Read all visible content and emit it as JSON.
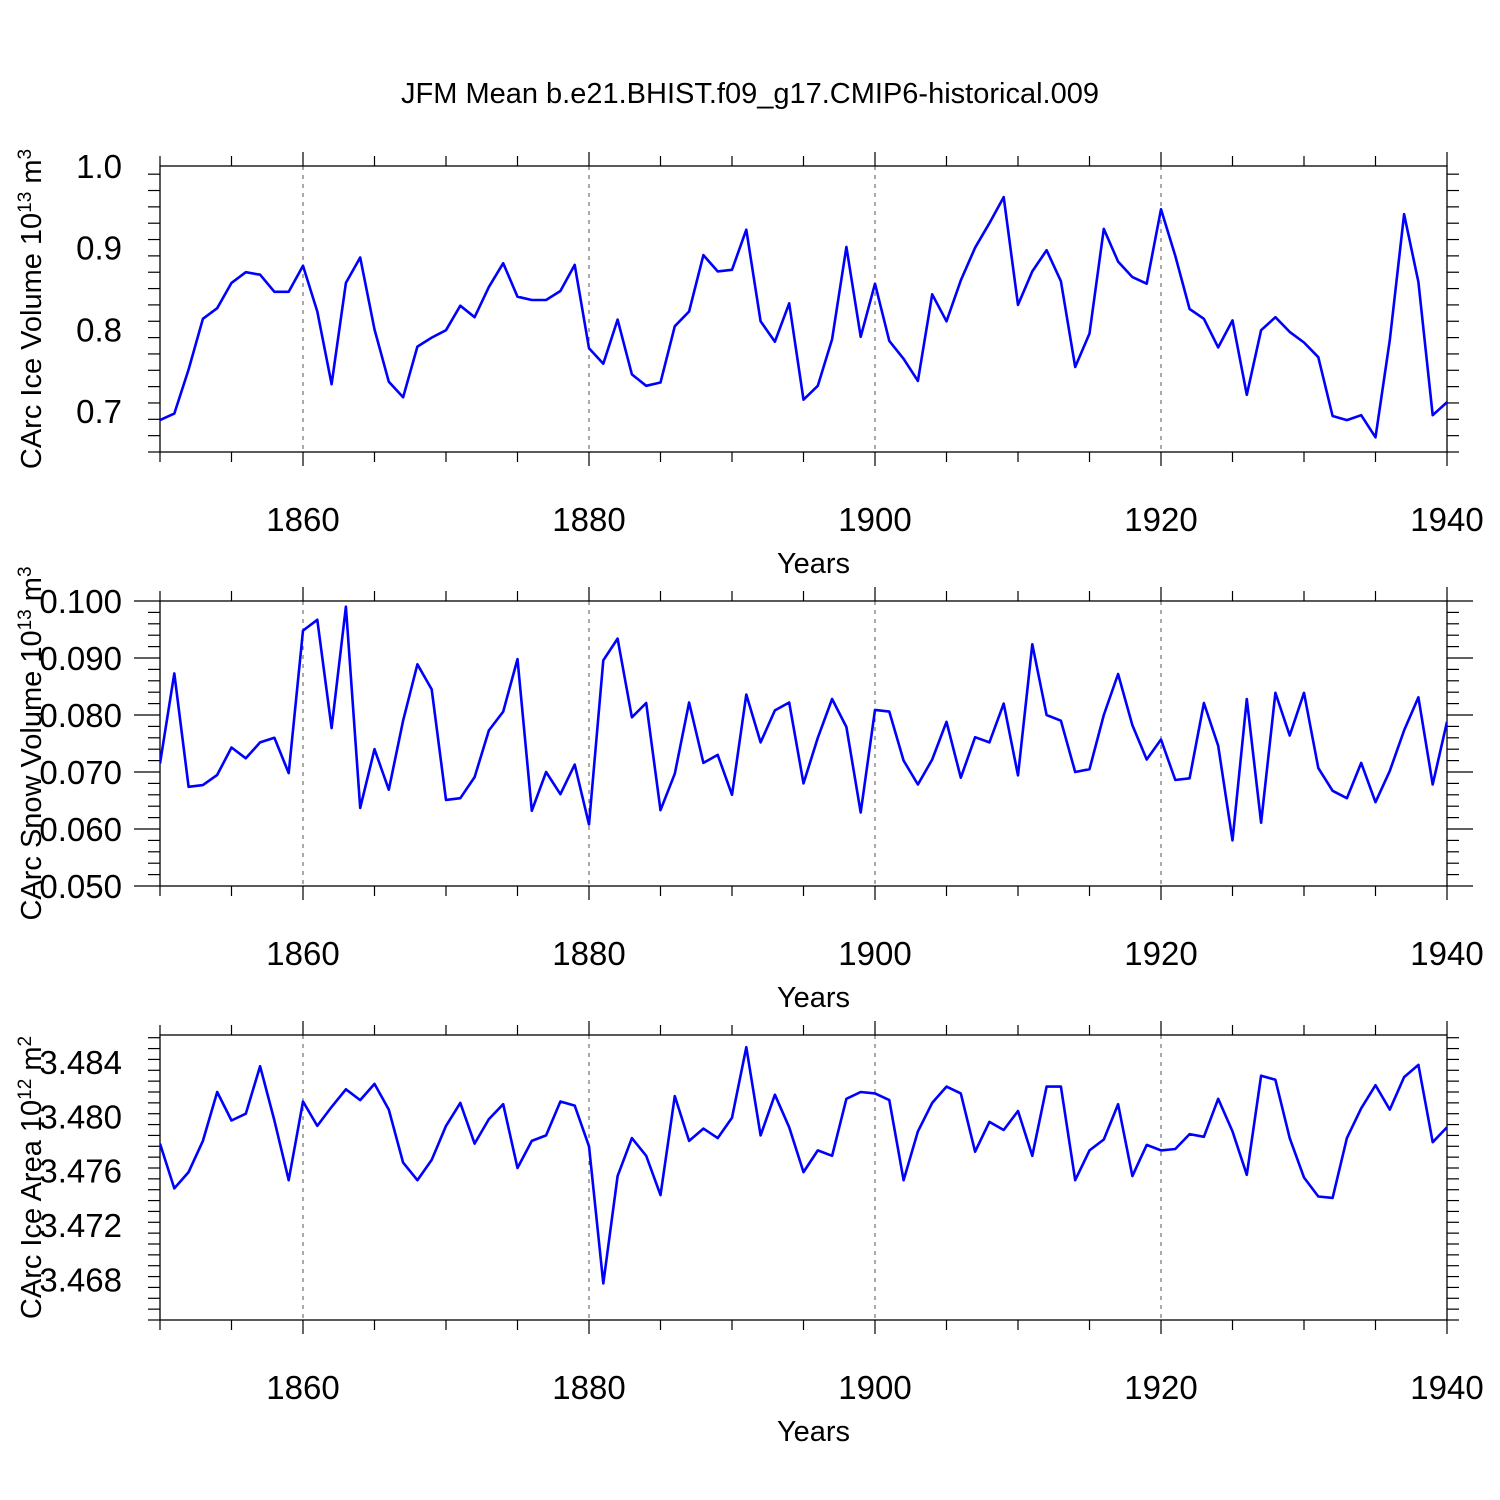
{
  "title": "JFM Mean b.e21.BHIST.f09_g17.CMIP6-historical.009",
  "colors": {
    "line": "#0000ff",
    "grid": "#555555",
    "axes": "#000000"
  },
  "chart_data": [
    {
      "type": "line",
      "ylabel": "CArc Ice Volume 10",
      "ylabel_exp": "13",
      "ylabel_unit": "m",
      "ylabel_unit_exp": "3",
      "xlabel": "Years",
      "xlim": [
        1850,
        1940
      ],
      "ylim": [
        0.65,
        1.0
      ],
      "xticks": [
        1860,
        1880,
        1900,
        1920,
        1940
      ],
      "xtick_labels": [
        "1860",
        "1880",
        "1900",
        "1920",
        "1940"
      ],
      "yticks": [
        0.7,
        0.8,
        0.9,
        1.0
      ],
      "ytick_labels": [
        "0.7",
        "0.8",
        "0.9",
        "1.0"
      ],
      "x_start": 1850,
      "values": [
        0.689,
        0.697,
        0.751,
        0.813,
        0.826,
        0.857,
        0.87,
        0.867,
        0.846,
        0.846,
        0.878,
        0.822,
        0.733,
        0.857,
        0.888,
        0.8,
        0.736,
        0.717,
        0.779,
        0.79,
        0.799,
        0.829,
        0.815,
        0.852,
        0.881,
        0.84,
        0.836,
        0.836,
        0.847,
        0.879,
        0.777,
        0.758,
        0.812,
        0.745,
        0.731,
        0.735,
        0.804,
        0.822,
        0.891,
        0.871,
        0.873,
        0.922,
        0.81,
        0.785,
        0.832,
        0.714,
        0.731,
        0.788,
        0.901,
        0.791,
        0.856,
        0.786,
        0.764,
        0.737,
        0.843,
        0.81,
        0.86,
        0.9,
        0.93,
        0.962,
        0.83,
        0.871,
        0.897,
        0.859,
        0.754,
        0.795,
        0.923,
        0.883,
        0.864,
        0.856,
        0.947,
        0.89,
        0.825,
        0.813,
        0.778,
        0.811,
        0.72,
        0.799,
        0.815,
        0.797,
        0.784,
        0.766,
        0.694,
        0.689,
        0.695,
        0.668,
        0.787,
        0.941,
        0.858,
        0.695,
        0.711
      ]
    },
    {
      "type": "line",
      "ylabel": "CArc Snow Volume 10",
      "ylabel_exp": "13",
      "ylabel_unit": "m",
      "ylabel_unit_exp": "3",
      "xlabel": "Years",
      "xlim": [
        1850,
        1940
      ],
      "ylim": [
        0.05,
        0.1
      ],
      "xticks": [
        1860,
        1880,
        1900,
        1920,
        1940
      ],
      "xtick_labels": [
        "1860",
        "1880",
        "1900",
        "1920",
        "1940"
      ],
      "yticks": [
        0.05,
        0.06,
        0.07,
        0.08,
        0.09,
        0.1
      ],
      "ytick_labels": [
        "0.050",
        "0.060",
        "0.070",
        "0.080",
        "0.090",
        "0.100"
      ],
      "x_start": 1850,
      "values": [
        0.0715,
        0.0873,
        0.0674,
        0.0677,
        0.0695,
        0.0743,
        0.0724,
        0.0752,
        0.076,
        0.0698,
        0.0948,
        0.0967,
        0.0777,
        0.099,
        0.0637,
        0.074,
        0.0669,
        0.079,
        0.0889,
        0.0845,
        0.0651,
        0.0654,
        0.0691,
        0.0773,
        0.0806,
        0.0898,
        0.0632,
        0.07,
        0.0661,
        0.0713,
        0.0608,
        0.0896,
        0.0934,
        0.0796,
        0.0821,
        0.0633,
        0.0697,
        0.0822,
        0.0716,
        0.073,
        0.066,
        0.0836,
        0.0752,
        0.0808,
        0.0822,
        0.068,
        0.076,
        0.0828,
        0.0779,
        0.0629,
        0.0809,
        0.0806,
        0.072,
        0.0678,
        0.0722,
        0.0788,
        0.069,
        0.0761,
        0.0752,
        0.082,
        0.0694,
        0.0924,
        0.08,
        0.079,
        0.07,
        0.0705,
        0.08,
        0.0872,
        0.0782,
        0.0722,
        0.0757,
        0.0686,
        0.0689,
        0.0821,
        0.0746,
        0.058,
        0.0828,
        0.0611,
        0.0839,
        0.0764,
        0.0839,
        0.0707,
        0.0667,
        0.0654,
        0.0716,
        0.0647,
        0.0702,
        0.0773,
        0.0831,
        0.0678,
        0.0788
      ]
    },
    {
      "type": "line",
      "ylabel": "CArc Ice Area 10",
      "ylabel_exp": "12",
      "ylabel_unit": "m",
      "ylabel_unit_exp": "2",
      "xlabel": "Years",
      "xlim": [
        1850,
        1940
      ],
      "ylim": [
        3.465,
        3.486
      ],
      "xticks": [
        1860,
        1880,
        1900,
        1920,
        1940
      ],
      "xtick_labels": [
        "1860",
        "1880",
        "1900",
        "1920",
        "1940"
      ],
      "yticks": [
        3.468,
        3.472,
        3.476,
        3.48,
        3.484
      ],
      "ytick_labels": [
        "3.468",
        "3.472",
        "3.476",
        "3.480",
        "3.484"
      ],
      "x_start": 1850,
      "values": [
        3.478,
        3.4747,
        3.4759,
        3.4782,
        3.4818,
        3.4797,
        3.4802,
        3.4837,
        3.4797,
        3.4753,
        3.4811,
        3.4793,
        3.4807,
        3.482,
        3.4812,
        3.4824,
        3.4805,
        3.4766,
        3.4753,
        3.4768,
        3.4793,
        3.481,
        3.478,
        3.4798,
        3.4809,
        3.4762,
        3.4782,
        3.4786,
        3.4811,
        3.4808,
        3.4778,
        3.4677,
        3.4756,
        3.4784,
        3.4771,
        3.4742,
        3.4815,
        3.4782,
        3.4791,
        3.4784,
        3.4799,
        3.4851,
        3.4786,
        3.4816,
        3.4792,
        3.4759,
        3.4775,
        3.4771,
        3.4813,
        3.4818,
        3.4817,
        3.4812,
        3.4753,
        3.4789,
        3.481,
        3.4822,
        3.4817,
        3.4774,
        3.4796,
        3.479,
        3.4804,
        3.4771,
        3.4822,
        3.4822,
        3.4753,
        3.4775,
        3.4783,
        3.4809,
        3.4756,
        3.4779,
        3.4775,
        3.4776,
        3.4787,
        3.4785,
        3.4813,
        3.4789,
        3.4757,
        3.483,
        3.4827,
        3.4784,
        3.4755,
        3.4741,
        3.474,
        3.4784,
        3.4806,
        3.4823,
        3.4805,
        3.4829,
        3.4838,
        3.4781,
        3.4792
      ]
    }
  ]
}
